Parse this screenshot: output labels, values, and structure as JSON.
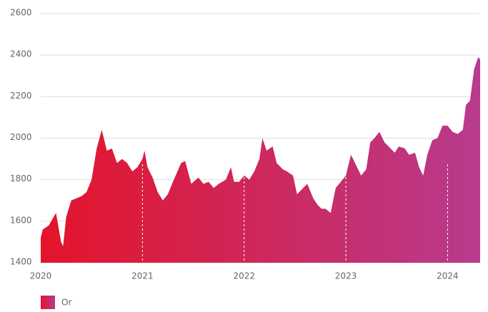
{
  "chart_data": {
    "type": "area",
    "x": [
      2020.0,
      2020.02,
      2020.08,
      2020.15,
      2020.2,
      2020.22,
      2020.25,
      2020.3,
      2020.4,
      2020.45,
      2020.5,
      2020.55,
      2020.6,
      2020.65,
      2020.7,
      2020.75,
      2020.8,
      2020.85,
      2020.9,
      2020.95,
      2021.0,
      2021.02,
      2021.05,
      2021.1,
      2021.15,
      2021.2,
      2021.25,
      2021.3,
      2021.38,
      2021.42,
      2021.48,
      2021.55,
      2021.6,
      2021.65,
      2021.7,
      2021.75,
      2021.82,
      2021.87,
      2021.9,
      2021.95,
      2022.0,
      2022.05,
      2022.1,
      2022.15,
      2022.18,
      2022.22,
      2022.28,
      2022.32,
      2022.38,
      2022.42,
      2022.48,
      2022.52,
      2022.58,
      2022.62,
      2022.68,
      2022.72,
      2022.76,
      2022.8,
      2022.85,
      2022.9,
      2022.95,
      2023.0,
      2023.05,
      2023.1,
      2023.15,
      2023.2,
      2023.24,
      2023.28,
      2023.33,
      2023.38,
      2023.42,
      2023.48,
      2023.52,
      2023.58,
      2023.62,
      2023.68,
      2023.72,
      2023.76,
      2023.8,
      2023.85,
      2023.9,
      2023.95,
      2024.0,
      2024.05,
      2024.1,
      2024.15,
      2024.18,
      2024.22,
      2024.26,
      2024.3,
      2024.32
    ],
    "series": [
      {
        "name": "Or",
        "color": [
          "#e4142a",
          "#b83b8e"
        ],
        "values": [
          1520,
          1560,
          1580,
          1640,
          1500,
          1480,
          1620,
          1700,
          1720,
          1740,
          1800,
          1950,
          2040,
          1940,
          1950,
          1880,
          1900,
          1880,
          1840,
          1860,
          1900,
          1940,
          1860,
          1810,
          1740,
          1700,
          1730,
          1790,
          1880,
          1890,
          1780,
          1810,
          1780,
          1790,
          1760,
          1780,
          1800,
          1860,
          1790,
          1790,
          1820,
          1800,
          1840,
          1900,
          2000,
          1940,
          1960,
          1880,
          1850,
          1840,
          1820,
          1730,
          1760,
          1780,
          1710,
          1680,
          1660,
          1660,
          1640,
          1760,
          1790,
          1820,
          1920,
          1870,
          1820,
          1850,
          1980,
          2000,
          2030,
          1980,
          1960,
          1930,
          1960,
          1950,
          1920,
          1930,
          1860,
          1820,
          1920,
          1990,
          2000,
          2060,
          2060,
          2030,
          2020,
          2040,
          2160,
          2180,
          2330,
          2390,
          2380
        ]
      }
    ],
    "xlim": [
      2020,
      2024.32
    ],
    "xticks": [
      2020,
      2021,
      2022,
      2023,
      2024
    ],
    "ylim": [
      1400,
      2600
    ],
    "yticks": [
      1400,
      1600,
      1800,
      2000,
      2200,
      2400,
      2600
    ],
    "grid": true,
    "legend": "bottom-left"
  }
}
